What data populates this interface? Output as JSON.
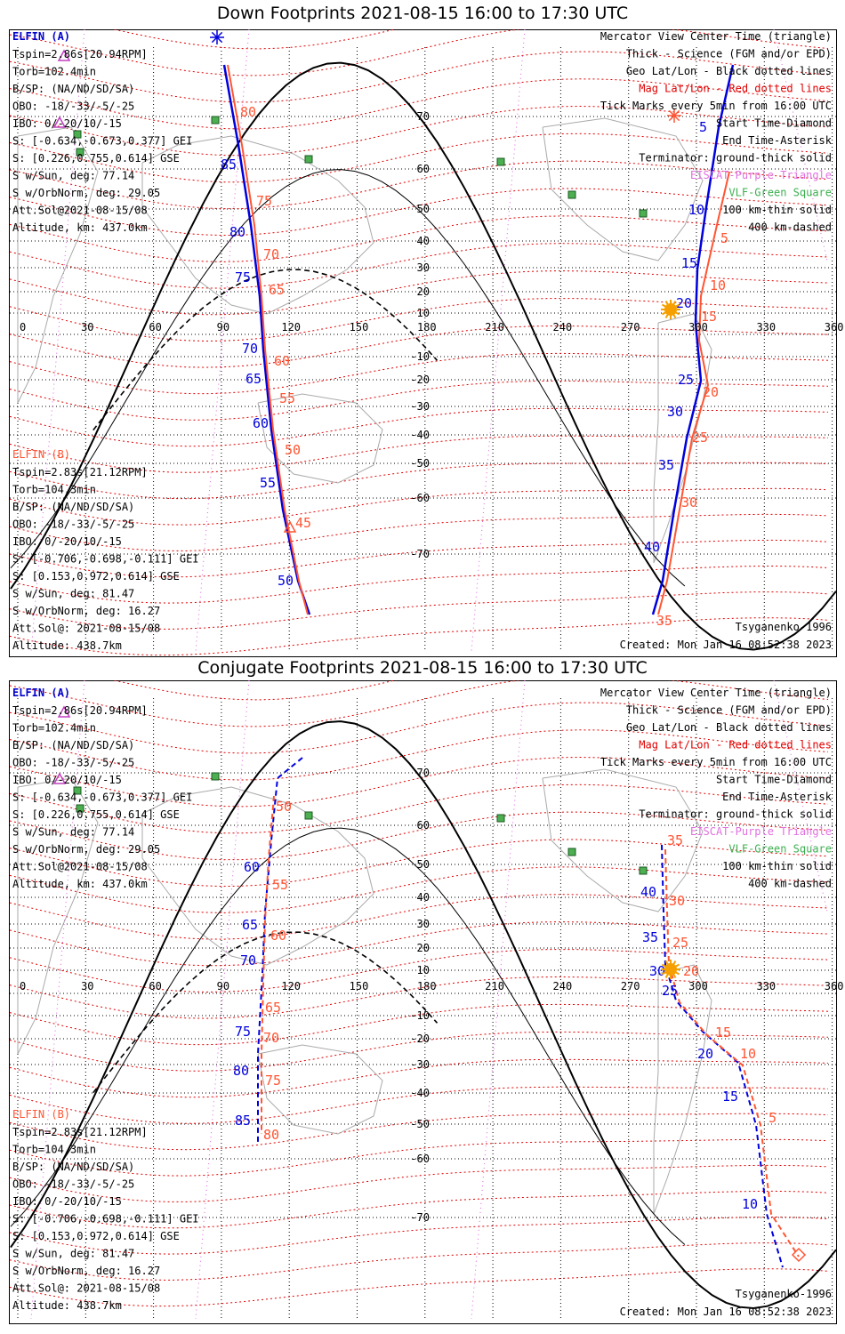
{
  "panels": [
    {
      "id": "down",
      "title": "Down Footprints 2021-08-15 16:00 to 17:30 UTC",
      "lon_ticks": [
        "0",
        "30",
        "60",
        "90",
        "120",
        "150",
        "180",
        "210",
        "240",
        "270",
        "300",
        "330",
        "360"
      ],
      "lat_ticks": [
        "70",
        "60",
        "50",
        "40",
        "30",
        "20",
        "10",
        "0",
        "-10",
        "-20",
        "-30",
        "-40",
        "-50",
        "-60",
        "-70"
      ],
      "info_a": {
        "header": "ELFIN (A)",
        "lines": [
          "Tspin=2.86s[20.94RPM]",
          "Torb=102.4min",
          "B/SP: (NA/ND/SD/SA)",
          "OBO: -18/-33/-5/-25",
          "IBO: 0/-20/10/-15",
          "S: [-0.634,-0.673,0.377] GEI",
          "S: [0.226,0.755,0.614] GSE",
          "S w/Sun, deg: 77.14",
          "S w/OrbNorm, deg: 29.05",
          "Att.Sol@2021-08-15/08",
          "Altitude, km: 437.0km"
        ]
      },
      "info_b": {
        "header": "ELFIN (B)",
        "lines": [
          "Tspin=2.83s[21.12RPM]",
          "Torb=104.3min",
          "B/SP: (NA/ND/SD/SA)",
          "OBO: -18/-33/-5/-25",
          "IBO: 0/-20/10/-15",
          "S: [-0.706,-0.698,-0.111] GEI",
          "S: [0.153,0.972,0.614] GSE",
          "S w/Sun, deg: 81.47",
          "S w/OrbNorm, deg: 16.27",
          "Att.Sol@: 2021-08-15/08",
          "Altitude: 438.7km"
        ]
      },
      "legend": [
        "Mercator View Center Time (triangle)",
        "Thick - Science (FGM and/or EPD)",
        "Geo Lat/Lon - Black dotted lines",
        "Mag Lat/Lon - Red dotted lines",
        "Tick Marks every 5min from 16:00 UTC",
        "Start Time-Diamond",
        "End Time-Asterisk",
        "Terminator: ground-thick solid",
        "EISCAT-Purple Triangle",
        "VLF-Green Square",
        "100 km-thin solid",
        "400 km-dashed"
      ],
      "model": "Tsyganenko-1996",
      "created": "Created: Mon Jan 16 08:52:38 2023",
      "track_a_labels": [
        "5",
        "10",
        "15",
        "20",
        "25",
        "30",
        "35",
        "40",
        "50",
        "55",
        "60",
        "65",
        "70",
        "75",
        "80",
        "85"
      ],
      "track_b_labels": [
        "5",
        "10",
        "15",
        "20",
        "25",
        "30",
        "35",
        "45",
        "50",
        "55",
        "60",
        "65",
        "70",
        "75",
        "80"
      ]
    },
    {
      "id": "conjugate",
      "title": "Conjugate Footprints 2021-08-15 16:00 to 17:30 UTC",
      "lon_ticks": [
        "0",
        "30",
        "60",
        "90",
        "120",
        "150",
        "180",
        "210",
        "240",
        "270",
        "300",
        "330",
        "360"
      ],
      "lat_ticks": [
        "70",
        "60",
        "50",
        "40",
        "30",
        "20",
        "10",
        "0",
        "-10",
        "-20",
        "-30",
        "-40",
        "-50",
        "-60",
        "-70"
      ],
      "info_a": {
        "header": "ELFIN (A)",
        "lines": [
          "Tspin=2.86s[20.94RPM]",
          "Torb=102.4min",
          "B/SP: (NA/ND/SD/SA)",
          "OBO: -18/-33/-5/-25",
          "IBO: 0/-20/10/-15",
          "S: [-0.634,-0.673,0.377] GEI",
          "S: [0.226,0.755,0.614] GSE",
          "S w/Sun, deg: 77.14",
          "S w/OrbNorm, deg: 29.05",
          "Att.Sol@2021-08-15/08",
          "Altitude, km: 437.0km"
        ]
      },
      "info_b": {
        "header": "ELFIN (B)",
        "lines": [
          "Tspin=2.83s[21.12RPM]",
          "Torb=104.3min",
          "B/SP: (NA/ND/SD/SA)",
          "OBO: -18/-33/-5/-25",
          "IBO: 0/-20/10/-15",
          "S: [-0.706,-0.698,-0.111] GEI",
          "S: [0.153,0.972,0.614] GSE",
          "S w/Sun, deg: 81.47",
          "S w/OrbNorm, deg: 16.27",
          "Att.Sol@: 2021-08-15/08",
          "Altitude: 438.7km"
        ]
      },
      "legend": [
        "Mercator View Center Time (triangle)",
        "Thick - Science (FGM and/or EPD)",
        "Geo Lat/Lon - Black dotted lines",
        "Mag Lat/Lon - Red dotted lines",
        "Tick Marks every 5min from 16:00 UTC",
        "Start Time-Diamond",
        "End Time-Asterisk",
        "Terminator: ground-thick solid",
        "EISCAT-Purple Triangle",
        "VLF-Green Square",
        "100 km-thin solid",
        "400 km-dashed"
      ],
      "model": "Tsyganenko-1996",
      "created": "Created: Mon Jan 16 08:52:38 2023",
      "track_a_labels": [
        "10",
        "15",
        "20",
        "25",
        "30",
        "35",
        "40",
        "60",
        "65",
        "70",
        "75",
        "80",
        "85"
      ],
      "track_b_labels": [
        "5",
        "10",
        "15",
        "20",
        "25",
        "30",
        "35",
        "50",
        "55",
        "60",
        "65",
        "70",
        "75",
        "80"
      ]
    }
  ],
  "colors": {
    "elfin_a": "#0000dd",
    "elfin_b": "#ff5533",
    "geo_grid": "#000000",
    "mag_grid": "#e00000",
    "eiscat": "#e060e0",
    "vlf": "#3cb050",
    "coast": "#aaaaaa",
    "sun": "#f5a000"
  }
}
